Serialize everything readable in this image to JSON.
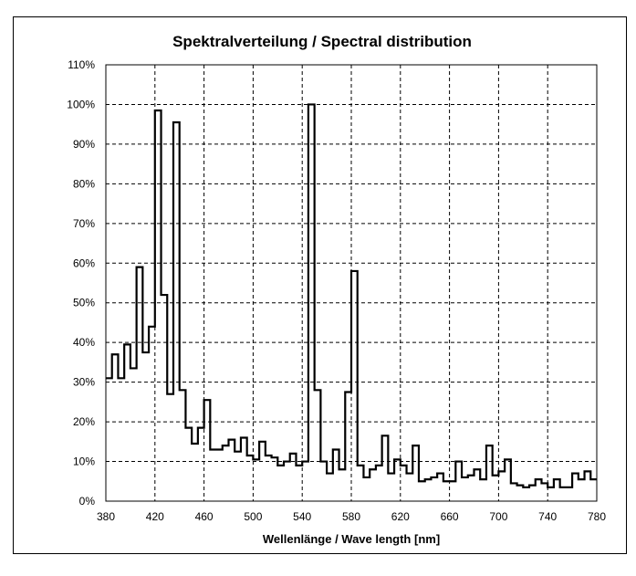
{
  "chart_data": {
    "type": "line",
    "step": true,
    "title": "Spektralverteilung / Spectral distribution",
    "xlabel": "Wellenlänge / Wave length [nm]",
    "ylabel": "",
    "xlim": [
      380,
      780
    ],
    "ylim": [
      0,
      110
    ],
    "x_ticks": [
      380,
      420,
      460,
      500,
      540,
      580,
      620,
      660,
      700,
      740,
      780
    ],
    "y_ticks": [
      0,
      10,
      20,
      30,
      40,
      50,
      60,
      70,
      80,
      90,
      100,
      110
    ],
    "y_tick_labels": [
      "0%",
      "10%",
      "20%",
      "30%",
      "40%",
      "50%",
      "60%",
      "70%",
      "80%",
      "90%",
      "100%",
      "110%"
    ],
    "grid": true,
    "series": [
      {
        "name": "Spectral distribution",
        "bin_width_nm": 5,
        "x": [
          380,
          385,
          390,
          395,
          400,
          405,
          410,
          415,
          420,
          425,
          430,
          435,
          440,
          445,
          450,
          455,
          460,
          465,
          470,
          475,
          480,
          485,
          490,
          495,
          500,
          505,
          510,
          515,
          520,
          525,
          530,
          535,
          540,
          545,
          550,
          555,
          560,
          565,
          570,
          575,
          580,
          585,
          590,
          595,
          600,
          605,
          610,
          615,
          620,
          625,
          630,
          635,
          640,
          645,
          650,
          655,
          660,
          665,
          670,
          675,
          680,
          685,
          690,
          695,
          700,
          705,
          710,
          715,
          720,
          725,
          730,
          735,
          740,
          745,
          750,
          755,
          760,
          765,
          770,
          775
        ],
        "values": [
          31,
          37,
          31,
          39.5,
          33.5,
          59,
          37.5,
          44,
          98.5,
          52,
          27,
          95.5,
          28,
          18.5,
          14.5,
          18.5,
          25.5,
          13,
          13,
          14,
          15.5,
          12.5,
          16,
          11.5,
          10.5,
          15,
          11.5,
          11,
          9,
          10,
          12,
          9,
          10,
          100,
          28,
          10,
          7,
          13,
          8,
          27.5,
          58,
          9,
          6,
          8,
          9,
          16.5,
          7,
          10.5,
          9,
          7,
          14,
          5,
          5.5,
          6,
          7,
          5,
          5,
          10,
          6,
          6.5,
          8,
          5.5,
          14,
          6.5,
          7.5,
          10.5,
          4.5,
          4,
          3.5,
          4,
          5.5,
          4.5,
          3.5,
          5.5,
          3.5,
          3.5,
          7,
          5.5,
          7.5,
          5.5
        ]
      }
    ]
  }
}
